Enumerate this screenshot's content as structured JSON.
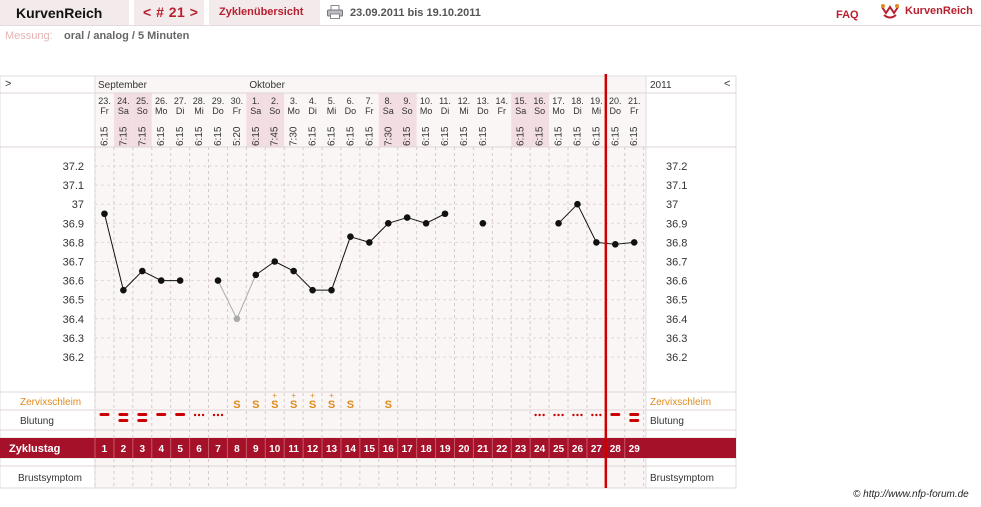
{
  "header": {
    "brand": "KurvenReich",
    "cycle_nav": "< # 21 >",
    "overview": "Zyklenübersicht",
    "date_range": "23.09.2011 bis 19.10.2011",
    "faq": "FAQ",
    "logo_text": "KurvenReich"
  },
  "measurement": {
    "label": "Messung:",
    "value": "oral / analog / 5 Minuten"
  },
  "nav": {
    "left_arrow": ">",
    "right_arrow": "<",
    "year": "2011"
  },
  "months": [
    {
      "name": "September",
      "day_index": 0
    },
    {
      "name": "Oktober",
      "day_index": 8
    }
  ],
  "days": [
    {
      "date": "23.",
      "weekday": "Fr",
      "time": "6:15",
      "cycle_day": "1",
      "temp": 36.95,
      "zervix": "",
      "blutung": "heavy"
    },
    {
      "date": "24.",
      "weekday": "Sa",
      "time": "7:15",
      "cycle_day": "2",
      "temp": 36.55,
      "zervix": "",
      "blutung": "double",
      "weekend": true
    },
    {
      "date": "25.",
      "weekday": "So",
      "time": "7:15",
      "cycle_day": "3",
      "temp": 36.65,
      "zervix": "",
      "blutung": "double",
      "weekend": true
    },
    {
      "date": "26.",
      "weekday": "Mo",
      "time": "6:15",
      "cycle_day": "4",
      "temp": 36.6,
      "zervix": "",
      "blutung": "heavy"
    },
    {
      "date": "27.",
      "weekday": "Di",
      "time": "6:15",
      "cycle_day": "5",
      "temp": 36.6,
      "zervix": "",
      "blutung": "heavy"
    },
    {
      "date": "28.",
      "weekday": "Mi",
      "time": "6:15",
      "cycle_day": "6",
      "temp": null,
      "zervix": "",
      "blutung": "spot"
    },
    {
      "date": "29.",
      "weekday": "Do",
      "time": "6:15",
      "cycle_day": "7",
      "temp": 36.6,
      "zervix": "",
      "blutung": "spot"
    },
    {
      "date": "30.",
      "weekday": "Fr",
      "time": "5:20",
      "cycle_day": "8",
      "temp": 36.4,
      "excluded": true,
      "zervix": "S",
      "blutung": ""
    },
    {
      "date": "1.",
      "weekday": "Sa",
      "time": "6:15",
      "cycle_day": "9",
      "temp": 36.63,
      "zervix": "S",
      "blutung": "",
      "weekend": true
    },
    {
      "date": "2.",
      "weekday": "So",
      "time": "7:45",
      "cycle_day": "10",
      "temp": 36.7,
      "zervix": "S+",
      "blutung": "",
      "weekend": true
    },
    {
      "date": "3.",
      "weekday": "Mo",
      "time": "7:30",
      "cycle_day": "11",
      "temp": 36.65,
      "zervix": "S+",
      "blutung": ""
    },
    {
      "date": "4.",
      "weekday": "Di",
      "time": "6:15",
      "cycle_day": "12",
      "temp": 36.55,
      "zervix": "S+",
      "blutung": ""
    },
    {
      "date": "5.",
      "weekday": "Mi",
      "time": "6:15",
      "cycle_day": "13",
      "temp": 36.55,
      "zervix": "S+",
      "blutung": ""
    },
    {
      "date": "6.",
      "weekday": "Do",
      "time": "6:15",
      "cycle_day": "14",
      "temp": 36.83,
      "zervix": "S",
      "blutung": ""
    },
    {
      "date": "7.",
      "weekday": "Fr",
      "time": "6:15",
      "cycle_day": "15",
      "temp": 36.8,
      "zervix": "",
      "blutung": ""
    },
    {
      "date": "8.",
      "weekday": "Sa",
      "time": "7:30",
      "cycle_day": "16",
      "temp": 36.9,
      "zervix": "S",
      "blutung": "",
      "weekend": true
    },
    {
      "date": "9.",
      "weekday": "So",
      "time": "6:15",
      "cycle_day": "17",
      "temp": 36.93,
      "zervix": "",
      "blutung": "",
      "weekend": true
    },
    {
      "date": "10.",
      "weekday": "Mo",
      "time": "6:15",
      "cycle_day": "18",
      "temp": 36.9,
      "zervix": "",
      "blutung": ""
    },
    {
      "date": "11.",
      "weekday": "Di",
      "time": "6:15",
      "cycle_day": "19",
      "temp": 36.95,
      "zervix": "",
      "blutung": ""
    },
    {
      "date": "12.",
      "weekday": "Mi",
      "time": "6:15",
      "cycle_day": "20",
      "temp": null,
      "zervix": "",
      "blutung": ""
    },
    {
      "date": "13.",
      "weekday": "Do",
      "time": "6:15",
      "cycle_day": "21",
      "temp": 36.9,
      "zervix": "",
      "blutung": ""
    },
    {
      "date": "14.",
      "weekday": "Fr",
      "time": "",
      "cycle_day": "22",
      "temp": null,
      "zervix": "",
      "blutung": ""
    },
    {
      "date": "15.",
      "weekday": "Sa",
      "time": "6:15",
      "cycle_day": "23",
      "temp": null,
      "zervix": "",
      "blutung": "",
      "weekend": true
    },
    {
      "date": "16.",
      "weekday": "So",
      "time": "6:15",
      "cycle_day": "24",
      "temp": null,
      "zervix": "",
      "blutung": "spot",
      "weekend": true
    },
    {
      "date": "17.",
      "weekday": "Mo",
      "time": "6:15",
      "cycle_day": "25",
      "temp": 36.9,
      "zervix": "",
      "blutung": "spot"
    },
    {
      "date": "18.",
      "weekday": "Di",
      "time": "6:15",
      "cycle_day": "26",
      "temp": 37.0,
      "zervix": "",
      "blutung": "spot"
    },
    {
      "date": "19.",
      "weekday": "Mi",
      "time": "6:15",
      "cycle_day": "27",
      "temp": 36.8,
      "zervix": "",
      "blutung": "spot"
    },
    {
      "date": "20.",
      "weekday": "Do",
      "time": "6:15",
      "cycle_day": "28",
      "temp": 36.79,
      "zervix": "",
      "blutung": "heavy"
    },
    {
      "date": "21.",
      "weekday": "Fr",
      "time": "6:15",
      "cycle_day": "29",
      "temp": 36.8,
      "zervix": "",
      "blutung": "double"
    }
  ],
  "axis": {
    "ticks": [
      "37.2",
      "37.1",
      "37",
      "36.9",
      "36.8",
      "36.7",
      "36.6",
      "36.5",
      "36.4",
      "36.3",
      "36.2"
    ],
    "min": 36.2,
    "max": 37.2
  },
  "rows": {
    "zervix": "Zervixschleim",
    "blutung": "Blutung",
    "zyklustag": "Zyklustag",
    "brust": "Brustsymptom"
  },
  "marker_day_index": 26,
  "credit": "© http://www.nfp-forum.de",
  "colors": {
    "accent": "#b7202f",
    "zervix": "#e08a1e",
    "marker": "#cc0000",
    "zyklus_band": "#a6112a",
    "weekend": "#f2dde2",
    "line": "#111111",
    "excluded_point": "#aaaaaa"
  },
  "chart_data": {
    "type": "line",
    "x": [
      "23.",
      "24.",
      "25.",
      "26.",
      "27.",
      "28.",
      "29.",
      "30.",
      "1.",
      "2.",
      "3.",
      "4.",
      "5.",
      "6.",
      "7.",
      "8.",
      "9.",
      "10.",
      "11.",
      "12.",
      "13.",
      "14.",
      "15.",
      "16.",
      "17.",
      "18.",
      "19.",
      "20.",
      "21."
    ],
    "series": [
      {
        "values": [
          36.95,
          36.55,
          36.65,
          36.6,
          36.6,
          null,
          36.6,
          36.4,
          36.63,
          36.7,
          36.65,
          36.55,
          36.55,
          36.83,
          36.8,
          36.9,
          36.93,
          36.9,
          36.95,
          null,
          36.9,
          null,
          null,
          null,
          36.9,
          37.0,
          36.8,
          36.79,
          36.8
        ]
      }
    ],
    "ylim": [
      36.2,
      37.2
    ],
    "grid": true
  }
}
